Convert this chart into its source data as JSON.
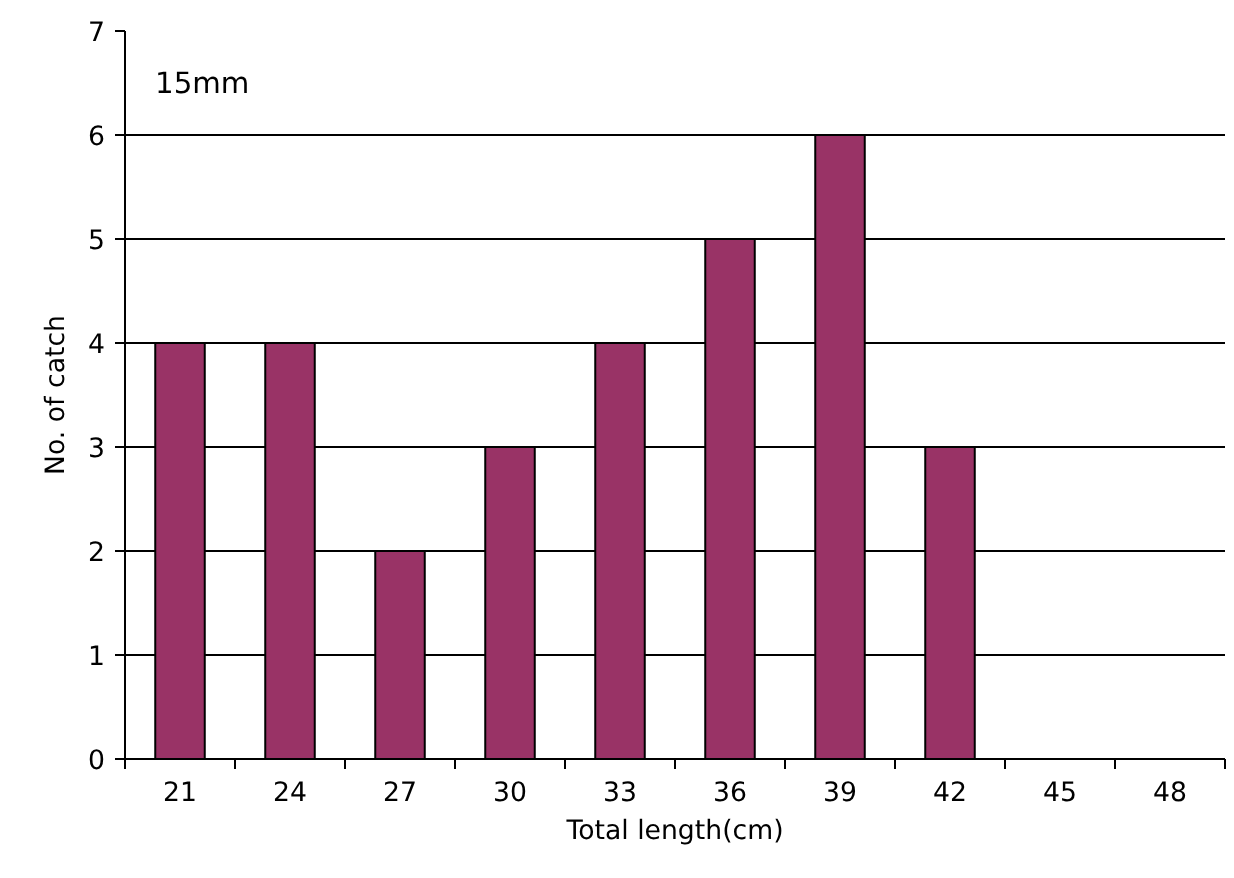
{
  "chart_data": {
    "type": "bar",
    "xlabel": "Total length(cm)",
    "ylabel": "No. of catch",
    "categories": [
      "21",
      "24",
      "27",
      "30",
      "33",
      "36",
      "39",
      "42",
      "45",
      "48"
    ],
    "values": [
      4,
      4,
      2,
      3,
      4,
      5,
      6,
      3,
      0,
      0
    ],
    "color": "#993366",
    "ylim": [
      0,
      7
    ],
    "yticks": [
      0,
      1,
      2,
      3,
      4,
      5,
      6,
      7
    ],
    "grid": "y",
    "annotations": [
      "15mm"
    ]
  }
}
